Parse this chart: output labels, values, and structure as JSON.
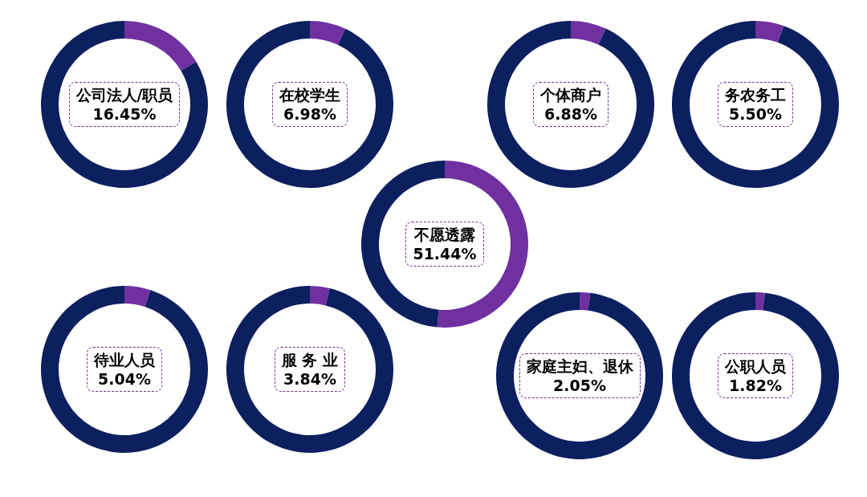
{
  "chart_data": [
    {
      "type": "donut",
      "categories": [
        "公司法人/职员",
        null
      ],
      "values": [
        16.45,
        83.55
      ],
      "colors": [
        "#7030a0",
        "#0c1f5f"
      ],
      "value_labels": [
        "16.45%",
        null
      ]
    },
    {
      "type": "donut",
      "categories": [
        "在校学生",
        null
      ],
      "values": [
        6.98,
        93.02
      ],
      "colors": [
        "#7030a0",
        "#0c1f5f"
      ],
      "value_labels": [
        "6.98%",
        null
      ]
    },
    {
      "type": "donut",
      "categories": [
        "个体商户",
        null
      ],
      "values": [
        6.88,
        93.12
      ],
      "colors": [
        "#7030a0",
        "#0c1f5f"
      ],
      "value_labels": [
        "6.88%",
        null
      ]
    },
    {
      "type": "donut",
      "categories": [
        "务农务工",
        null
      ],
      "values": [
        5.5,
        94.5
      ],
      "colors": [
        "#7030a0",
        "#0c1f5f"
      ],
      "value_labels": [
        "5.50%",
        null
      ]
    },
    {
      "type": "donut",
      "categories": [
        "不愿透露",
        null
      ],
      "values": [
        51.44,
        48.56
      ],
      "colors": [
        "#7030a0",
        "#0c1f5f"
      ],
      "value_labels": [
        "51.44%",
        null
      ]
    },
    {
      "type": "donut",
      "categories": [
        "待业人员",
        null
      ],
      "values": [
        5.04,
        94.96
      ],
      "colors": [
        "#7030a0",
        "#0c1f5f"
      ],
      "value_labels": [
        "5.04%",
        null
      ]
    },
    {
      "type": "donut",
      "categories": [
        "服 务 业",
        null
      ],
      "values": [
        3.84,
        96.16
      ],
      "colors": [
        "#7030a0",
        "#0c1f5f"
      ],
      "value_labels": [
        "3.84%",
        null
      ]
    },
    {
      "type": "donut",
      "categories": [
        "家庭主妇、退休",
        null
      ],
      "values": [
        2.05,
        97.95
      ],
      "colors": [
        "#7030a0",
        "#0c1f5f"
      ],
      "value_labels": [
        "2.05%",
        null
      ]
    },
    {
      "type": "donut",
      "categories": [
        "公职人员",
        null
      ],
      "values": [
        1.82,
        98.18
      ],
      "colors": [
        "#7030a0",
        "#0c1f5f"
      ],
      "value_labels": [
        "1.82%",
        null
      ]
    }
  ]
}
